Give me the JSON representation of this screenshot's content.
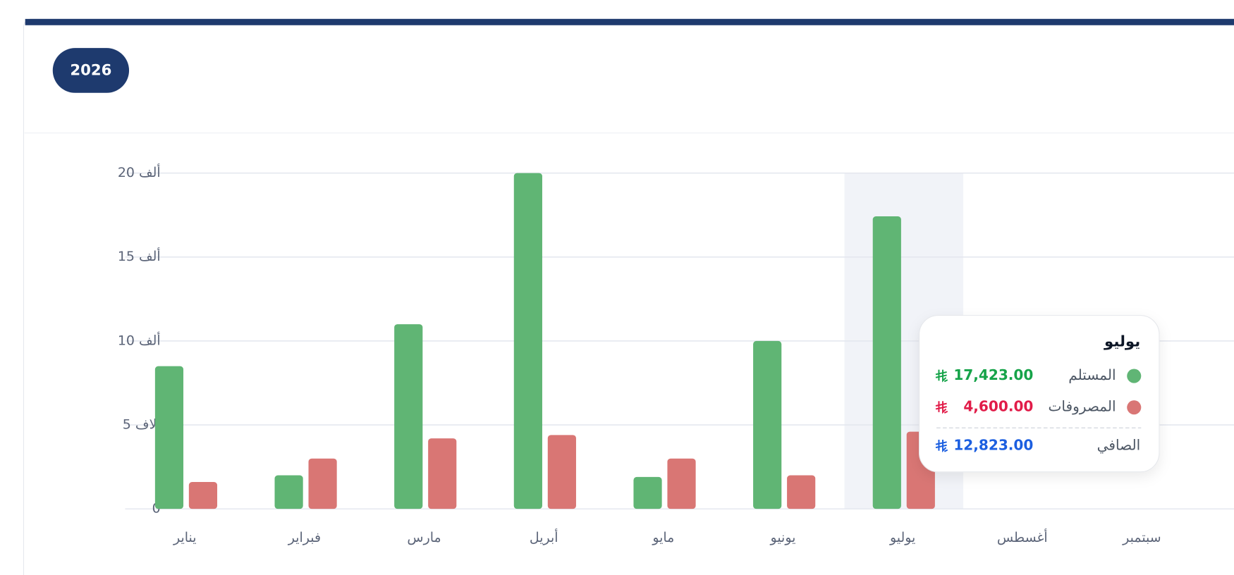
{
  "year_button": "2026",
  "chart_data": {
    "type": "bar",
    "categories": [
      "يناير",
      "فبراير",
      "مارس",
      "أبريل",
      "مايو",
      "يونيو",
      "يوليو",
      "أغسطس",
      "سبتمبر"
    ],
    "series": [
      {
        "name": "المستلم",
        "color": "#60b574",
        "values": [
          8500,
          2000,
          11000,
          20000,
          1900,
          10000,
          17423,
          0,
          0
        ]
      },
      {
        "name": "المصروفات",
        "color": "#d97674",
        "values": [
          1600,
          3000,
          4200,
          4400,
          3000,
          2000,
          4600,
          0,
          0
        ]
      }
    ],
    "ylim": [
      0,
      20000
    ],
    "yticks": [
      0,
      {
        "value": 5000,
        "label": "5 آلاف"
      },
      {
        "value": 10000,
        "label": "10 ألف"
      },
      {
        "value": 15000,
        "label": "15 ألف"
      },
      {
        "value": 20000,
        "label": "20 ألف"
      }
    ],
    "grid": true
  },
  "tooltip": {
    "received": "17,423.00",
    "expenses": "4,600.00",
    "net_label": "الصافي",
    "net": "12,823.00"
  }
}
